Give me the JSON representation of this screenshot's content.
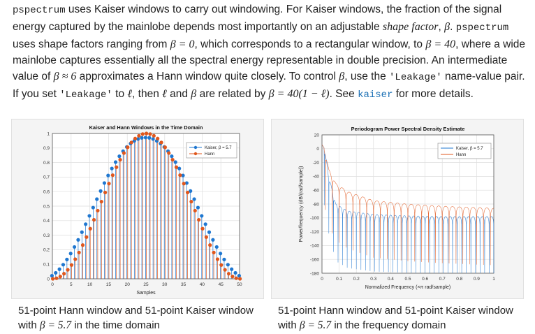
{
  "intro": {
    "fn1": "pspectrum",
    "t1": " uses Kaiser windows to carry out windowing. For Kaiser windows, the fraction of the signal energy captured by the mainlobe depends most importantly on an adjustable ",
    "t1_em": "shape factor",
    "t1b": ", ",
    "beta": "β",
    "t1c": ".",
    "fn2": "pspectrum",
    "t2": " uses shape factors ranging from ",
    "eq1": "β = 0",
    "t3": ", which corresponds to a rectangular window, to ",
    "eq2": "β = 40",
    "t4": ", where a wide mainlobe captures essentially all the spectral energy representable in double precision. An intermediate value of ",
    "eq3": "β ≈ 6",
    "t5": " approximates a Hann window quite closely. To control ",
    "eq4": "β",
    "t6": ", use the ",
    "code1": "'Leakage'",
    "t7": " name-value pair. If you set ",
    "code2": "'Leakage'",
    "t8": " to ",
    "eq5": "ℓ",
    "t9": ", then ",
    "eq6": "ℓ",
    "t10": " and ",
    "eq7": "β",
    "t11": " are related by ",
    "eq8": "β = 40(1 − ℓ)",
    "t12": ". See ",
    "link": "kaiser",
    "t13": " for more details."
  },
  "captions": {
    "left_a": "51-point Hann window and 51-point Kaiser window with ",
    "left_eq": "β = 5.7",
    "left_b": " in the time domain",
    "right_a": "51-point Hann window and 51-point Kaiser window with ",
    "right_eq": "β = 5.7",
    "right_b": " in the frequency domain"
  },
  "colors": {
    "kaiser": "#1f77d0",
    "hann": "#e0571d",
    "link": "#1a6fb4"
  },
  "chart_data": [
    {
      "type": "line",
      "subtype": "stem",
      "title": "Kaiser and Hann Windows in the Time Domain",
      "xlabel": "Samples",
      "ylabel": "",
      "xlim": [
        0,
        50
      ],
      "ylim": [
        0,
        1
      ],
      "xticks": [
        0,
        5,
        10,
        15,
        20,
        25,
        30,
        35,
        40,
        45,
        50
      ],
      "yticks": [
        0,
        0.1,
        0.2,
        0.3,
        0.4,
        0.5,
        0.6,
        0.7,
        0.8,
        0.9,
        1
      ],
      "grid": true,
      "legend_position": "top-right",
      "series": [
        {
          "name": "Kaiser, β = 5.7",
          "x": [
            0,
            1,
            2,
            3,
            4,
            5,
            6,
            7,
            8,
            9,
            10,
            11,
            12,
            13,
            14,
            15,
            16,
            17,
            18,
            19,
            20,
            21,
            22,
            23,
            24,
            25,
            26,
            27,
            28,
            29,
            30,
            31,
            32,
            33,
            34,
            35,
            36,
            37,
            38,
            39,
            40,
            41,
            42,
            43,
            44,
            45,
            46,
            47,
            48,
            49,
            50
          ],
          "values": [
            0.021,
            0.041,
            0.066,
            0.097,
            0.133,
            0.174,
            0.219,
            0.268,
            0.321,
            0.376,
            0.433,
            0.49,
            0.548,
            0.604,
            0.659,
            0.711,
            0.759,
            0.803,
            0.843,
            0.878,
            0.907,
            0.931,
            0.949,
            0.962,
            0.97,
            0.972,
            0.97,
            0.962,
            0.949,
            0.931,
            0.907,
            0.878,
            0.843,
            0.803,
            0.759,
            0.711,
            0.659,
            0.604,
            0.548,
            0.49,
            0.433,
            0.376,
            0.321,
            0.268,
            0.219,
            0.174,
            0.133,
            0.097,
            0.066,
            0.041,
            0.021
          ]
        },
        {
          "name": "Hann",
          "x": [
            0,
            1,
            2,
            3,
            4,
            5,
            6,
            7,
            8,
            9,
            10,
            11,
            12,
            13,
            14,
            15,
            16,
            17,
            18,
            19,
            20,
            21,
            22,
            23,
            24,
            25,
            26,
            27,
            28,
            29,
            30,
            31,
            32,
            33,
            34,
            35,
            36,
            37,
            38,
            39,
            40,
            41,
            42,
            43,
            44,
            45,
            46,
            47,
            48,
            49,
            50
          ],
          "values": [
            0.0,
            0.004,
            0.016,
            0.035,
            0.062,
            0.095,
            0.135,
            0.181,
            0.232,
            0.287,
            0.345,
            0.406,
            0.469,
            0.531,
            0.594,
            0.655,
            0.713,
            0.768,
            0.819,
            0.865,
            0.905,
            0.938,
            0.965,
            0.984,
            0.996,
            1.0,
            0.996,
            0.984,
            0.965,
            0.938,
            0.905,
            0.865,
            0.819,
            0.768,
            0.713,
            0.655,
            0.594,
            0.531,
            0.469,
            0.406,
            0.345,
            0.287,
            0.232,
            0.181,
            0.135,
            0.095,
            0.062,
            0.035,
            0.016,
            0.004,
            0.0
          ]
        }
      ]
    },
    {
      "type": "line",
      "title": "Periodogram Power Spectral Density Estimate",
      "xlabel": "Normalized Frequency (×π rad/sample)",
      "ylabel": "Power/frequency (dB/(rad/sample))",
      "xlim": [
        0,
        1
      ],
      "ylim": [
        -180,
        20
      ],
      "xticks": [
        0,
        0.1,
        0.2,
        0.3,
        0.4,
        0.5,
        0.6,
        0.7,
        0.8,
        0.9,
        1
      ],
      "yticks": [
        20,
        0,
        -20,
        -40,
        -60,
        -80,
        -100,
        -120,
        -140,
        -160,
        -180
      ],
      "grid": true,
      "legend_position": "top-right",
      "series": [
        {
          "name": "Kaiser, β = 5.7",
          "x": [
            0,
            0.015,
            0.04,
            0.08,
            0.15,
            0.3,
            0.5,
            0.7,
            0.9,
            1.0
          ],
          "values": [
            6,
            0,
            -40,
            -80,
            -90,
            -95,
            -97,
            -98,
            -98,
            -98
          ]
        },
        {
          "name": "Hann",
          "x": [
            0,
            0.015,
            0.04,
            0.08,
            0.15,
            0.3,
            0.5,
            0.7,
            0.9,
            1.0
          ],
          "values": [
            6,
            0,
            -30,
            -50,
            -62,
            -75,
            -80,
            -83,
            -85,
            -86
          ]
        }
      ]
    }
  ]
}
